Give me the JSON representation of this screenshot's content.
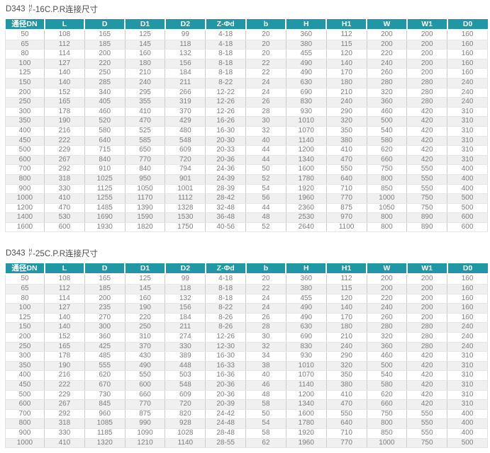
{
  "accent_color": "#2097a4",
  "chart_data": [
    {
      "type": "table",
      "title_prefix": "D343",
      "title_stack_top": "H",
      "title_stack_bottom": "F",
      "title_suffix": "-16C.P.R连接尺寸",
      "columns": [
        "通径DN",
        "L",
        "D",
        "D1",
        "D2",
        "Z-Φd",
        "b",
        "H",
        "H1",
        "W",
        "W1",
        "D0"
      ],
      "rows": [
        [
          "50",
          "108",
          "165",
          "125",
          "99",
          "4-18",
          "20",
          "360",
          "112",
          "200",
          "200",
          "160"
        ],
        [
          "65",
          "112",
          "185",
          "145",
          "118",
          "4-18",
          "20",
          "380",
          "115",
          "200",
          "200",
          "160"
        ],
        [
          "80",
          "114",
          "200",
          "160",
          "132",
          "8-18",
          "20",
          "455",
          "120",
          "220",
          "200",
          "160"
        ],
        [
          "100",
          "127",
          "220",
          "180",
          "156",
          "8-18",
          "22",
          "490",
          "140",
          "240",
          "200",
          "160"
        ],
        [
          "125",
          "140",
          "250",
          "210",
          "184",
          "8-18",
          "22",
          "490",
          "170",
          "260",
          "200",
          "160"
        ],
        [
          "150",
          "140",
          "285",
          "240",
          "211",
          "8-22",
          "24",
          "630",
          "180",
          "280",
          "280",
          "240"
        ],
        [
          "200",
          "152",
          "340",
          "295",
          "266",
          "12-22",
          "24",
          "690",
          "210",
          "320",
          "280",
          "240"
        ],
        [
          "250",
          "165",
          "405",
          "355",
          "319",
          "12-26",
          "26",
          "830",
          "240",
          "360",
          "280",
          "240"
        ],
        [
          "300",
          "178",
          "460",
          "410",
          "370",
          "12-26",
          "28",
          "930",
          "290",
          "460",
          "420",
          "310"
        ],
        [
          "350",
          "190",
          "520",
          "470",
          "429",
          "16-26",
          "30",
          "1010",
          "320",
          "500",
          "420",
          "310"
        ],
        [
          "400",
          "216",
          "580",
          "525",
          "480",
          "16-30",
          "32",
          "1070",
          "350",
          "540",
          "420",
          "310"
        ],
        [
          "450",
          "222",
          "640",
          "585",
          "548",
          "20-30",
          "40",
          "1140",
          "380",
          "580",
          "420",
          "310"
        ],
        [
          "500",
          "229",
          "715",
          "650",
          "609",
          "20-33",
          "44",
          "1200",
          "410",
          "620",
          "420",
          "310"
        ],
        [
          "600",
          "267",
          "840",
          "770",
          "720",
          "20-36",
          "44",
          "1340",
          "470",
          "660",
          "420",
          "310"
        ],
        [
          "700",
          "292",
          "910",
          "840",
          "794",
          "24-36",
          "50",
          "1600",
          "550",
          "750",
          "550",
          "400"
        ],
        [
          "800",
          "318",
          "1025",
          "950",
          "901",
          "24-39",
          "52",
          "1780",
          "640",
          "800",
          "550",
          "400"
        ],
        [
          "900",
          "330",
          "1125",
          "1050",
          "1001",
          "28-39",
          "54",
          "1920",
          "710",
          "850",
          "550",
          "400"
        ],
        [
          "1000",
          "410",
          "1255",
          "1170",
          "1112",
          "28-42",
          "56",
          "1960",
          "770",
          "1000",
          "750",
          "500"
        ],
        [
          "1200",
          "470",
          "1485",
          "1390",
          "1328",
          "32-48",
          "44",
          "2360",
          "875",
          "1050",
          "750",
          "500"
        ],
        [
          "1400",
          "530",
          "1690",
          "1590",
          "1530",
          "36-48",
          "48",
          "2530",
          "970",
          "800",
          "890",
          "600"
        ],
        [
          "1600",
          "600",
          "1930",
          "1820",
          "1750",
          "40-56",
          "52",
          "2640",
          "1100",
          "800",
          "890",
          "600"
        ]
      ]
    },
    {
      "type": "table",
      "title_prefix": "D343",
      "title_stack_top": "H",
      "title_stack_bottom": "F",
      "title_suffix": "-25C.P.R连接尺寸",
      "columns": [
        "通径DN",
        "L",
        "D",
        "D1",
        "D2",
        "Z-Φd",
        "b",
        "H",
        "H1",
        "W",
        "W1",
        "D0"
      ],
      "rows": [
        [
          "50",
          "108",
          "165",
          "125",
          "99",
          "4-18",
          "20",
          "360",
          "112",
          "200",
          "200",
          "160"
        ],
        [
          "65",
          "112",
          "185",
          "145",
          "118",
          "8-18",
          "22",
          "380",
          "115",
          "200",
          "200",
          "160"
        ],
        [
          "80",
          "114",
          "200",
          "160",
          "132",
          "8-18",
          "24",
          "455",
          "120",
          "220",
          "200",
          "160"
        ],
        [
          "100",
          "127",
          "235",
          "190",
          "156",
          "8-22",
          "24",
          "490",
          "140",
          "240",
          "200",
          "160"
        ],
        [
          "125",
          "140",
          "270",
          "220",
          "184",
          "8-26",
          "26",
          "490",
          "170",
          "260",
          "200",
          "160"
        ],
        [
          "150",
          "140",
          "300",
          "250",
          "211",
          "8-26",
          "28",
          "630",
          "180",
          "280",
          "280",
          "240"
        ],
        [
          "200",
          "152",
          "360",
          "310",
          "274",
          "12-26",
          "30",
          "690",
          "210",
          "320",
          "280",
          "240"
        ],
        [
          "250",
          "165",
          "425",
          "370",
          "330",
          "12-30",
          "32",
          "830",
          "240",
          "360",
          "280",
          "240"
        ],
        [
          "300",
          "178",
          "485",
          "430",
          "389",
          "16-30",
          "34",
          "930",
          "290",
          "460",
          "420",
          "310"
        ],
        [
          "350",
          "190",
          "555",
          "490",
          "448",
          "16-33",
          "38",
          "1010",
          "320",
          "500",
          "420",
          "310"
        ],
        [
          "400",
          "216",
          "620",
          "550",
          "503",
          "16-36",
          "40",
          "1070",
          "350",
          "540",
          "420",
          "310"
        ],
        [
          "450",
          "222",
          "670",
          "600",
          "548",
          "20-36",
          "46",
          "1140",
          "380",
          "580",
          "420",
          "310"
        ],
        [
          "500",
          "229",
          "730",
          "660",
          "609",
          "20-36",
          "48",
          "1200",
          "410",
          "620",
          "420",
          "310"
        ],
        [
          "600",
          "267",
          "845",
          "770",
          "720",
          "20-39",
          "58",
          "1340",
          "470",
          "660",
          "420",
          "310"
        ],
        [
          "700",
          "292",
          "960",
          "875",
          "820",
          "24-42",
          "50",
          "1600",
          "550",
          "750",
          "550",
          "400"
        ],
        [
          "800",
          "318",
          "1085",
          "990",
          "928",
          "24-48",
          "54",
          "1780",
          "640",
          "800",
          "550",
          "400"
        ],
        [
          "900",
          "330",
          "1185",
          "1090",
          "1028",
          "28-48",
          "58",
          "1920",
          "710",
          "850",
          "550",
          "400"
        ],
        [
          "1000",
          "410",
          "1320",
          "1210",
          "1140",
          "28-55",
          "62",
          "1960",
          "770",
          "1000",
          "750",
          "500"
        ]
      ]
    }
  ]
}
